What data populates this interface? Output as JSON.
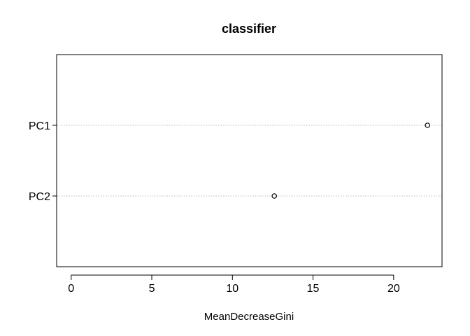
{
  "chart_data": {
    "type": "scatter",
    "title": "classifier",
    "xlabel": "MeanDecreaseGini",
    "ylabel": "",
    "xlim": [
      -0.9,
      23.0
    ],
    "xticks": [
      0,
      5,
      10,
      15,
      20
    ],
    "grid": "dotted horizontal lines per category",
    "legend": "none",
    "categories": [
      "PC1",
      "PC2"
    ],
    "values": [
      22.1,
      12.6
    ],
    "colors": {
      "point_stroke": "#000000",
      "grid": "#bebebe",
      "axis": "#000000"
    }
  }
}
